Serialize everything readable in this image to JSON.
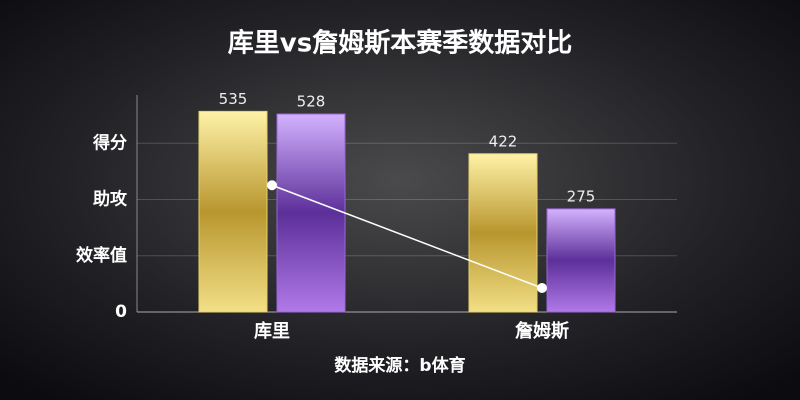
{
  "chart_data": {
    "type": "bar",
    "title": "库里vs詹姆斯本赛季数据对比",
    "source": "数据来源：b体育",
    "categories": [
      "库里",
      "詹姆斯"
    ],
    "series": [
      {
        "type": "bar",
        "color": "#e8cf6a",
        "values": [
          535,
          422
        ]
      },
      {
        "type": "bar",
        "color": "#9a64d6",
        "values": [
          528,
          275
        ]
      },
      {
        "type": "line",
        "color": "#ffffff",
        "values": [
          338,
          64
        ]
      }
    ],
    "ylim": [
      0,
      600
    ],
    "yticks": [
      0,
      {
        "value": 150,
        "label": "效率值"
      },
      {
        "value": 300,
        "label": "助攻"
      },
      {
        "value": 450,
        "label": "得分"
      }
    ],
    "grid": true
  }
}
